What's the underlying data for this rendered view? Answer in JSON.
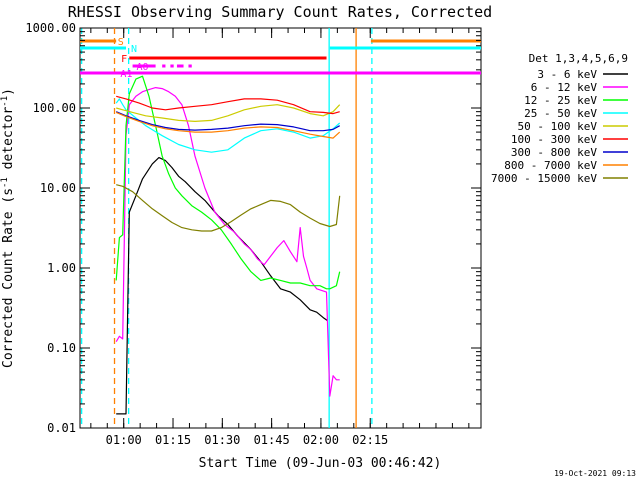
{
  "chart_data": {
    "type": "line",
    "title": "RHESSI Observing Summary Count Rates, Corrected",
    "xlabel": "Start Time (09-Jun-03 00:46:42)",
    "ylabel_main": "Corrected Count Rate (s",
    "ylabel_sup": "-1",
    "ylabel_tail": " detector",
    "ylabel_sup2": "-1",
    "ylabel_end": ")",
    "x_unit": "minutes after 00:46:42",
    "xlim": [
      0,
      122
    ],
    "ylim": [
      0.01,
      1000
    ],
    "yscale": "log",
    "x_ticks": [
      {
        "v": 13.3,
        "label": "01:00"
      },
      {
        "v": 28.3,
        "label": "01:15"
      },
      {
        "v": 43.3,
        "label": "01:30"
      },
      {
        "v": 58.3,
        "label": "01:45"
      },
      {
        "v": 73.3,
        "label": "02:00"
      },
      {
        "v": 88.3,
        "label": "02:15"
      }
    ],
    "y_ticks": [
      {
        "v": 0.01,
        "label": "0.01"
      },
      {
        "v": 0.1,
        "label": "0.10"
      },
      {
        "v": 1,
        "label": "1.00"
      },
      {
        "v": 10,
        "label": "10.00"
      },
      {
        "v": 100,
        "label": "100.00"
      },
      {
        "v": 1000,
        "label": "1000.00"
      }
    ],
    "legend_title": "Det 1,3,4,5,6,9",
    "legend_position": "right",
    "series": [
      {
        "name": "3 - 6 keV",
        "color": "#000000",
        "x": [
          11,
          13,
          13.5,
          14,
          15,
          17,
          19,
          22,
          24,
          26,
          28,
          30,
          32,
          35,
          38,
          42,
          45,
          48,
          52,
          55,
          58,
          61,
          64,
          67,
          70,
          72,
          74,
          75.3
        ],
        "y": [
          0.015,
          0.015,
          0.015,
          0.015,
          5,
          8,
          13,
          20,
          24,
          22,
          18,
          14,
          12,
          9,
          7,
          4.5,
          3.5,
          2.5,
          1.7,
          1.2,
          0.8,
          0.55,
          0.5,
          0.4,
          0.3,
          0.28,
          0.24,
          0.22
        ]
      },
      {
        "name": "6 - 12 keV",
        "color": "#ff00ff",
        "x": [
          11,
          12,
          13,
          14,
          15,
          17,
          19,
          21,
          23,
          25,
          27,
          29,
          31,
          33,
          35,
          38,
          41,
          44,
          47,
          50,
          52,
          54,
          56,
          58,
          60,
          62,
          64,
          66,
          67,
          68,
          69,
          70,
          72,
          75,
          76,
          77,
          78,
          79
        ],
        "y": [
          0.12,
          0.14,
          0.13,
          45,
          110,
          140,
          160,
          170,
          180,
          175,
          160,
          140,
          110,
          60,
          25,
          10,
          5,
          3.5,
          2.8,
          2,
          1.7,
          1.3,
          1.1,
          1.4,
          1.8,
          2.2,
          1.6,
          1.2,
          3.2,
          1.4,
          1.0,
          0.7,
          0.55,
          0.5,
          0.025,
          0.045,
          0.04,
          0.04
        ]
      },
      {
        "name": "12 - 25 keV",
        "color": "#00ff00",
        "x": [
          11,
          12,
          13,
          14,
          15,
          17,
          19,
          21,
          23,
          25,
          27,
          29,
          31,
          34,
          37,
          40,
          43,
          46,
          49,
          52,
          55,
          58,
          61,
          64,
          67,
          70,
          73,
          75,
          76,
          78,
          79
        ],
        "y": [
          0.7,
          2.4,
          2.6,
          60,
          150,
          230,
          250,
          140,
          60,
          25,
          15,
          10,
          8,
          6,
          5,
          4,
          3,
          2,
          1.3,
          0.9,
          0.7,
          0.75,
          0.7,
          0.65,
          0.65,
          0.6,
          0.6,
          0.55,
          0.55,
          0.6,
          0.9
        ]
      },
      {
        "name": "25 - 50 keV",
        "color": "#00ffff",
        "x": [
          11,
          12,
          13,
          14,
          17,
          20,
          25,
          30,
          35,
          40,
          45,
          50,
          55,
          60,
          65,
          70,
          74,
          77,
          79
        ],
        "y": [
          115,
          130,
          110,
          95,
          75,
          60,
          45,
          35,
          30,
          28,
          30,
          42,
          52,
          55,
          50,
          42,
          45,
          55,
          65
        ]
      },
      {
        "name": "50 - 100 keV",
        "color": "#cccc00",
        "x": [
          11,
          13,
          16,
          20,
          25,
          30,
          35,
          40,
          45,
          50,
          55,
          60,
          65,
          70,
          74,
          77,
          79
        ],
        "y": [
          100,
          95,
          88,
          80,
          75,
          70,
          68,
          70,
          80,
          95,
          105,
          110,
          100,
          85,
          80,
          90,
          110
        ]
      },
      {
        "name": "100 - 300 keV",
        "color": "#ff0000",
        "x": [
          11,
          14,
          18,
          22,
          26,
          30,
          35,
          40,
          45,
          50,
          55,
          60,
          65,
          70,
          74,
          77,
          79
        ],
        "y": [
          140,
          130,
          115,
          100,
          95,
          100,
          105,
          110,
          120,
          130,
          130,
          125,
          110,
          90,
          88,
          85,
          90
        ]
      },
      {
        "name": "300 - 800 keV",
        "color": "#0000cc",
        "x": [
          11,
          14,
          18,
          22,
          26,
          30,
          35,
          40,
          45,
          50,
          55,
          60,
          65,
          70,
          74,
          77,
          79
        ],
        "y": [
          90,
          80,
          70,
          62,
          57,
          54,
          53,
          54,
          56,
          60,
          63,
          62,
          58,
          52,
          52,
          54,
          60
        ]
      },
      {
        "name": "800 - 7000 keV",
        "color": "#ff8000",
        "x": [
          11,
          14,
          18,
          22,
          26,
          30,
          35,
          40,
          45,
          50,
          55,
          60,
          65,
          70,
          74,
          77,
          79
        ],
        "y": [
          88,
          78,
          68,
          60,
          55,
          52,
          50,
          50,
          52,
          56,
          58,
          57,
          52,
          47,
          44,
          42,
          50
        ]
      },
      {
        "name": "7000 - 15000 keV",
        "color": "#808000",
        "x": [
          11,
          13,
          16,
          19,
          22,
          25,
          28,
          31,
          34,
          37,
          40,
          43,
          46,
          49,
          52,
          55,
          58,
          61,
          64,
          67,
          70,
          73,
          76,
          78,
          79
        ],
        "y": [
          11,
          10.5,
          9,
          7,
          5.5,
          4.5,
          3.7,
          3.2,
          3.0,
          2.9,
          2.9,
          3.2,
          3.8,
          4.6,
          5.5,
          6.2,
          7.0,
          6.8,
          6.2,
          5.0,
          4.2,
          3.6,
          3.3,
          3.5,
          8
        ]
      }
    ],
    "annotations": [
      {
        "text": "S",
        "color": "#ff8000",
        "x": 11.5,
        "level": "top"
      },
      {
        "text": "N",
        "color": "#00ffff",
        "x": 15.5,
        "level": "second"
      },
      {
        "text": "F",
        "color": "#ff0000",
        "x": 12.5,
        "level": "third"
      },
      {
        "text": "A0",
        "color": "#ff00ff",
        "x": 17.2,
        "level": "fourth"
      },
      {
        "text": "A1",
        "color": "#ff00ff",
        "x": 12.3,
        "level": "fifth"
      }
    ],
    "status_bars": [
      {
        "name": "SAA",
        "color": "#ff8000",
        "level": "top",
        "segments": [
          [
            0,
            11
          ],
          [
            88.5,
            122
          ]
        ]
      },
      {
        "name": "Night",
        "color": "#00ffff",
        "level": "second",
        "segments": [
          [
            0,
            14
          ],
          [
            76,
            122
          ]
        ]
      },
      {
        "name": "Flare",
        "color": "#ff0000",
        "level": "third",
        "segments": [
          [
            15,
            75
          ]
        ]
      },
      {
        "name": "Attenuator state",
        "color": "#ff00ff",
        "level": "fifth",
        "segments": [
          [
            0,
            122
          ]
        ]
      },
      {
        "name": "Attenuator flags",
        "color": "#ff00ff",
        "level": "fourth",
        "segments": [
          [
            16,
            23
          ],
          [
            25,
            26
          ],
          [
            27.5,
            28.5
          ],
          [
            29.5,
            31.5
          ],
          [
            33,
            34
          ]
        ]
      }
    ],
    "vertical_markers": [
      {
        "name": "SAA boundary",
        "color": "#ff8000",
        "style": "dashed",
        "x": 10.5
      },
      {
        "name": "Night boundary",
        "color": "#00ffff",
        "style": "dashed",
        "x": 14.8
      },
      {
        "name": "Night boundary",
        "color": "#00ffff",
        "style": "solid",
        "x": 75.8
      },
      {
        "name": "SAA boundary",
        "color": "#ff8000",
        "style": "solid",
        "x": 84
      },
      {
        "name": "Night boundary",
        "color": "#00ffff",
        "style": "dashed",
        "x": 0.5
      },
      {
        "name": "Night boundary",
        "color": "#00ffff",
        "style": "dashed",
        "x": 88.8
      }
    ],
    "footer_date": "19-Oct-2021 09:13"
  }
}
